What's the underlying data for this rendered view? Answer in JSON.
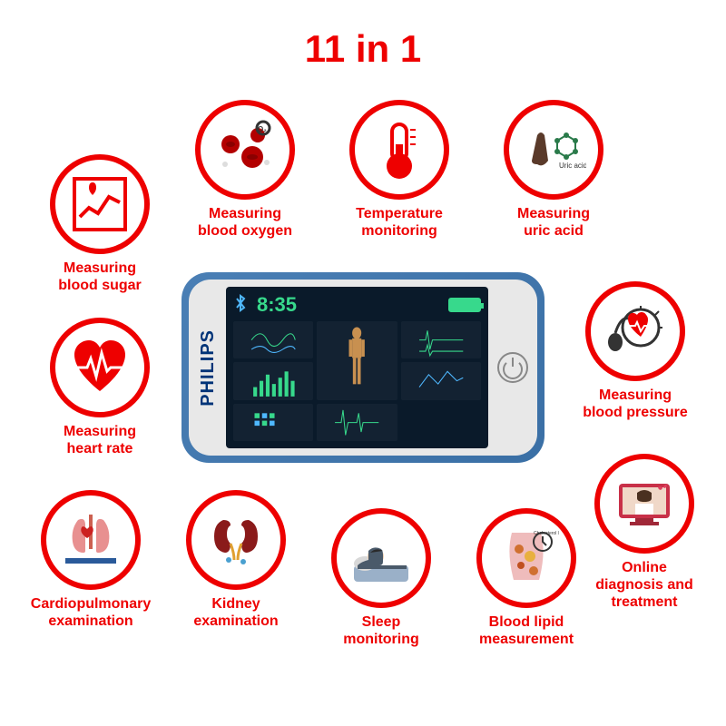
{
  "title": "11 in 1",
  "accent_color": "#ee0000",
  "circle_border_color": "#ee0000",
  "circle_border_width": 6,
  "circle_diameter": 110,
  "background_color": "#ffffff",
  "device": {
    "brand": "PHILIPS",
    "time": "8:35",
    "body_color_start": "#4a7fb5",
    "body_color_end": "#3a6fa5",
    "screen_bg": "#0a1a2a",
    "accent_green": "#37d98c",
    "accent_blue": "#4fb8ff"
  },
  "features": [
    {
      "label": "Measuring\nblood sugar",
      "icon": "blood-sugar"
    },
    {
      "label": "Measuring\nblood oxygen",
      "icon": "blood-oxygen"
    },
    {
      "label": "Temperature\nmonitoring",
      "icon": "temperature"
    },
    {
      "label": "Measuring\nuric acid",
      "icon": "uric-acid"
    },
    {
      "label": "Measuring\nheart rate",
      "icon": "heart-rate"
    },
    {
      "label": "Measuring\nblood pressure",
      "icon": "blood-pressure"
    },
    {
      "label": "Cardiopulmonary\nexamination",
      "icon": "cardio"
    },
    {
      "label": "Kidney\nexamination",
      "icon": "kidney"
    },
    {
      "label": "Sleep\nmonitoring",
      "icon": "sleep"
    },
    {
      "label": "Blood lipid\nmeasurement",
      "icon": "lipid"
    },
    {
      "label": "Online\ndiagnosis and\ntreatment",
      "icon": "online"
    }
  ]
}
